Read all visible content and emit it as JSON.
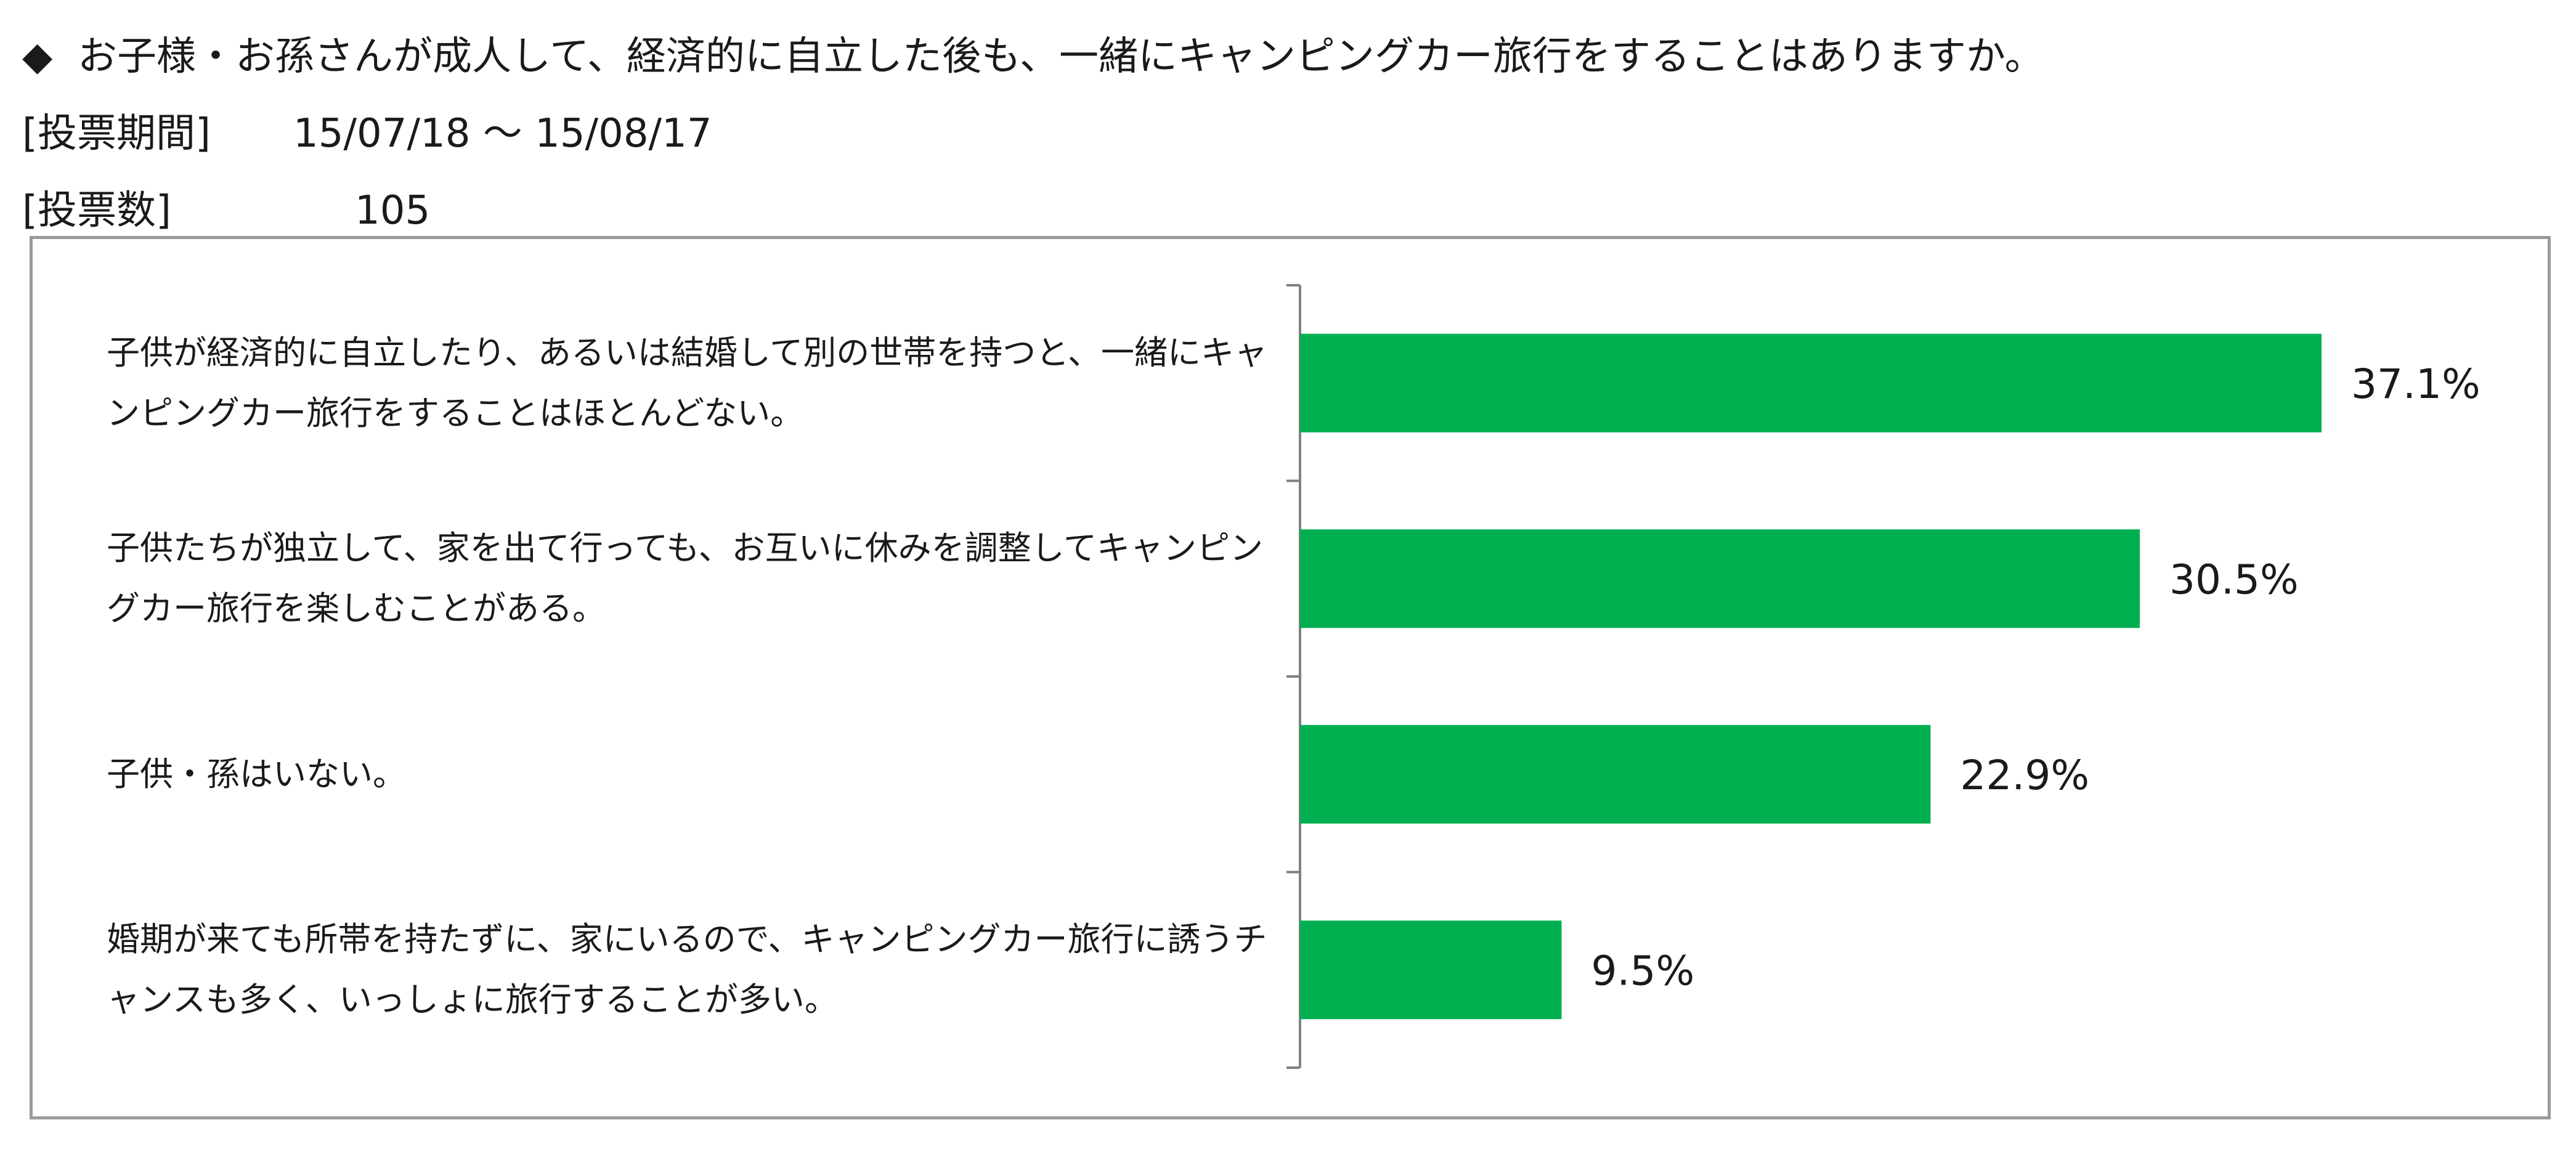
{
  "header": {
    "title_marker": "◆",
    "title": "お子様・お孫さんが成人して、経済的に自立した後も、一緒にキャンピングカー旅行をすることはありますか。",
    "period_label": "[投票期間]",
    "period_value": "15/07/18 ～ 15/08/17",
    "count_label": "[投票数]",
    "count_value": "105"
  },
  "colors": {
    "bar": "#00b050",
    "axis": "#808080",
    "frame": "#9a9a9a"
  },
  "chart_data": {
    "type": "bar",
    "orientation": "horizontal",
    "categories": [
      "子供が経済的に自立したり、あるいは結婚して別の世帯を持つと、一緒にキャンピングカー旅行をすることはほとんどない。",
      "子供たちが独立して、家を出て行っても、お互いに休みを調整してキャンピングカー旅行を楽しむことがある。",
      "子供・孫はいない。",
      "婚期が来ても所帯を持たずに、家にいるので、キャンピングカー旅行に誘うチャンスも多く、いっしょに旅行することが多い。"
    ],
    "values": [
      37.1,
      30.5,
      22.9,
      9.5
    ],
    "data_labels": [
      "37.1%",
      "30.5%",
      "22.9%",
      "9.5%"
    ],
    "unit": "%",
    "xlim": [
      0,
      40
    ],
    "grid": false,
    "legend": "none"
  }
}
